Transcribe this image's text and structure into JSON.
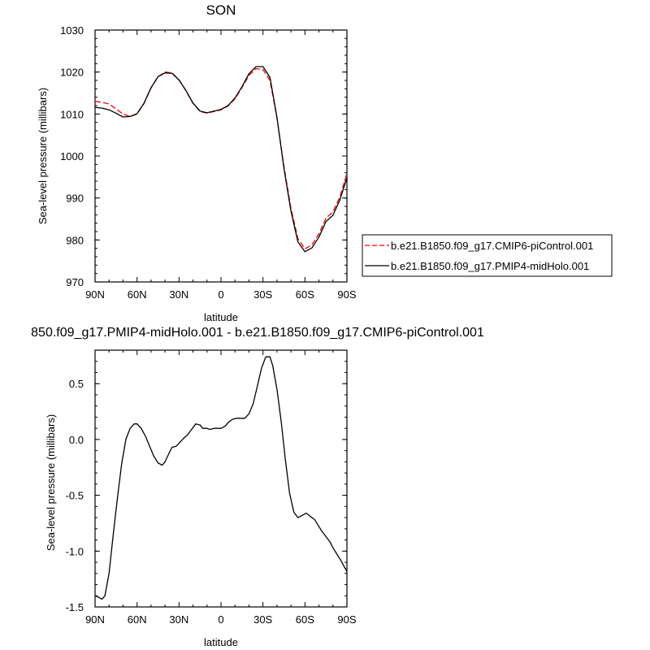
{
  "chart_data": [
    {
      "type": "line",
      "title": "SON",
      "xlabel": "latitude",
      "ylabel": "Sea-level pressure (millibars)",
      "xlim": [
        90,
        -90
      ],
      "ylim": [
        970,
        1030
      ],
      "xticks": [
        90,
        60,
        30,
        0,
        -30,
        -60,
        -90
      ],
      "xtick_labels": [
        "90N",
        "60N",
        "30N",
        "0",
        "30S",
        "60S",
        "90S"
      ],
      "yticks": [
        970,
        980,
        990,
        1000,
        1010,
        1020,
        1030
      ],
      "ytick_labels": [
        "970",
        "980",
        "990",
        "1000",
        "1010",
        "1020",
        "1030"
      ],
      "grid": false,
      "legend": "right",
      "series": [
        {
          "name": "b.e21.B1850.f09_g17.CMIP6-piControl.001",
          "color": "#ff0000",
          "dash": "dashed",
          "x": [
            90,
            85,
            80,
            75,
            70,
            65,
            60,
            55,
            50,
            45,
            40,
            35,
            30,
            25,
            20,
            15,
            10,
            5,
            0,
            -5,
            -10,
            -15,
            -20,
            -25,
            -30,
            -35,
            -40,
            -45,
            -50,
            -55,
            -60,
            -65,
            -70,
            -75,
            -80,
            -85,
            -90
          ],
          "values": [
            1013.0,
            1012.8,
            1012.4,
            1011.2,
            1010.0,
            1009.4,
            1010.0,
            1012.5,
            1016.2,
            1018.9,
            1020.0,
            1019.8,
            1018.2,
            1015.5,
            1012.5,
            1010.6,
            1010.2,
            1010.6,
            1011.0,
            1011.9,
            1013.6,
            1016.3,
            1019.2,
            1020.8,
            1020.6,
            1018.0,
            1009.0,
            997.5,
            987.5,
            980.3,
            977.9,
            978.8,
            981.5,
            985.2,
            986.7,
            990.3,
            995.9
          ]
        },
        {
          "name": "b.e21.B1850.f09_g17.PMIP4-midHolo.001",
          "color": "#000000",
          "dash": "solid",
          "x": [
            90,
            85,
            80,
            75,
            70,
            65,
            60,
            55,
            50,
            45,
            40,
            35,
            30,
            25,
            20,
            15,
            10,
            5,
            0,
            -5,
            -10,
            -15,
            -20,
            -25,
            -30,
            -35,
            -40,
            -45,
            -50,
            -55,
            -60,
            -65,
            -70,
            -75,
            -80,
            -85,
            -90
          ],
          "values": [
            1011.6,
            1011.4,
            1011.0,
            1010.2,
            1009.3,
            1009.4,
            1010.1,
            1012.6,
            1016.3,
            1018.9,
            1019.8,
            1019.7,
            1018.1,
            1015.6,
            1012.6,
            1010.7,
            1010.3,
            1010.7,
            1011.1,
            1012.0,
            1013.8,
            1016.5,
            1019.6,
            1021.3,
            1021.3,
            1018.7,
            1009.2,
            997.0,
            986.9,
            979.5,
            977.2,
            978.1,
            980.7,
            984.4,
            985.9,
            989.6,
            994.8
          ]
        }
      ]
    },
    {
      "type": "line",
      "title": "850.f09_g17.PMIP4-midHolo.001 - b.e21.B1850.f09_g17.CMIP6-piControl.001",
      "xlabel": "latitude",
      "ylabel": "Sea-level pressure (millibars)",
      "xlim": [
        90,
        -90
      ],
      "ylim": [
        -1.5,
        0.8
      ],
      "xticks": [
        90,
        60,
        30,
        0,
        -30,
        -60,
        -90
      ],
      "xtick_labels": [
        "90N",
        "60N",
        "30N",
        "0",
        "30S",
        "60S",
        "90S"
      ],
      "yticks": [
        -1.5,
        -1.0,
        -0.5,
        0.0,
        0.5
      ],
      "ytick_labels": [
        "-1.5",
        "-1.0",
        "-0.5",
        "0.0",
        "0.5"
      ],
      "grid": false,
      "series": [
        {
          "color": "#000000",
          "dash": "solid",
          "x": [
            90,
            88,
            85,
            83,
            80,
            77,
            74,
            71,
            68,
            65,
            62,
            60,
            57,
            54,
            51,
            48,
            45,
            42,
            40,
            37,
            35,
            32,
            29,
            26,
            24,
            21,
            18,
            15,
            13,
            10,
            8,
            5,
            2,
            0,
            -3,
            -5,
            -8,
            -11,
            -14,
            -17,
            -20,
            -23,
            -26,
            -29,
            -32,
            -35,
            -37,
            -40,
            -43,
            -46,
            -49,
            -52,
            -55,
            -58,
            -61,
            -64,
            -67,
            -69,
            -72,
            -75,
            -78,
            -80,
            -83,
            -86,
            -88,
            -90
          ],
          "values": [
            -1.4,
            -1.41,
            -1.43,
            -1.4,
            -1.2,
            -0.85,
            -0.52,
            -0.22,
            0.0,
            0.1,
            0.14,
            0.14,
            0.1,
            0.03,
            -0.06,
            -0.15,
            -0.21,
            -0.23,
            -0.2,
            -0.12,
            -0.07,
            -0.06,
            -0.02,
            0.02,
            0.04,
            0.09,
            0.14,
            0.13,
            0.1,
            0.1,
            0.09,
            0.1,
            0.1,
            0.1,
            0.12,
            0.15,
            0.18,
            0.19,
            0.19,
            0.19,
            0.23,
            0.32,
            0.48,
            0.64,
            0.74,
            0.74,
            0.66,
            0.45,
            0.16,
            -0.18,
            -0.48,
            -0.65,
            -0.7,
            -0.68,
            -0.66,
            -0.69,
            -0.72,
            -0.76,
            -0.82,
            -0.87,
            -0.92,
            -0.97,
            -1.03,
            -1.09,
            -1.14,
            -1.18
          ]
        }
      ]
    }
  ]
}
